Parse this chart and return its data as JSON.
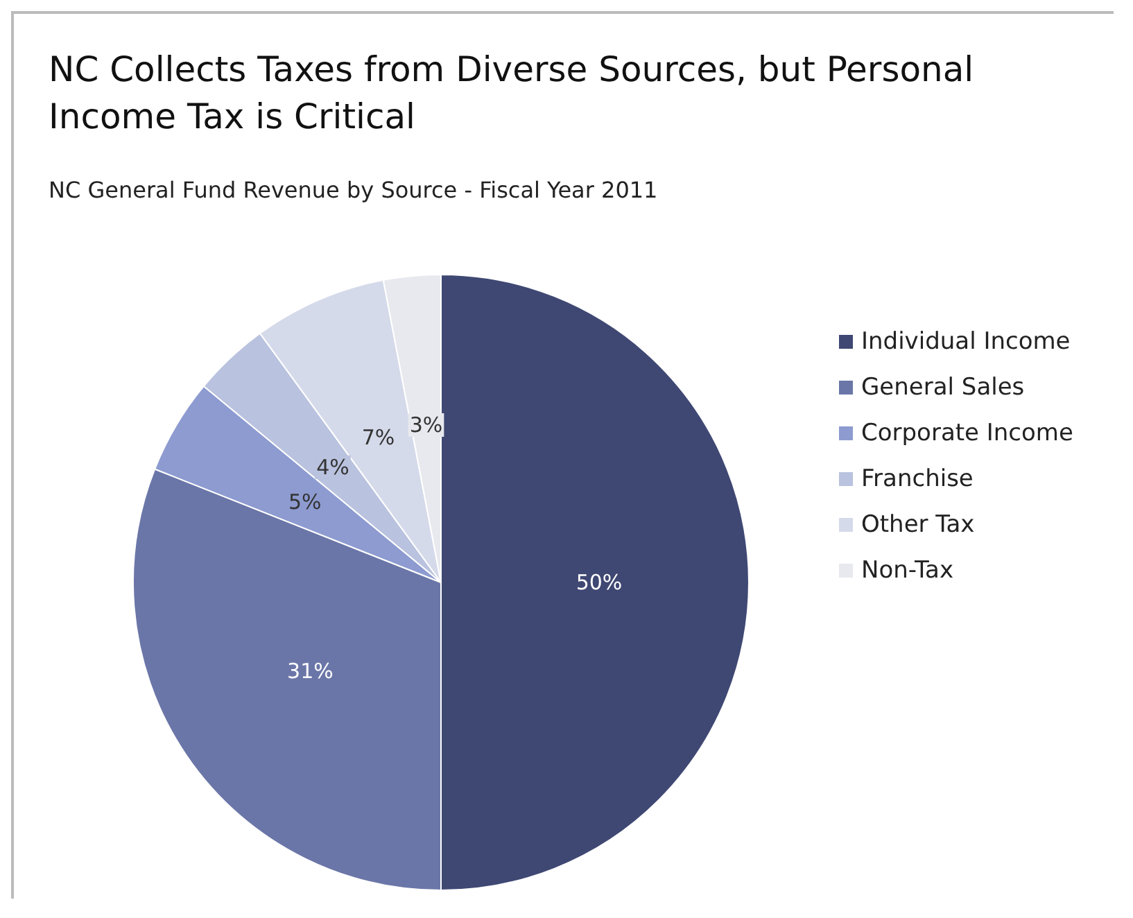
{
  "chart_data": {
    "type": "pie",
    "title": "NC Collects Taxes from Diverse Sources, but Personal\nIncome Tax is Critical",
    "subtitle": "NC General Fund Revenue by Source - Fiscal Year 2011",
    "categories": [
      "Individual Income",
      "General Sales",
      "Corporate Income",
      "Franchise",
      "Other Tax",
      "Non-Tax"
    ],
    "values": [
      50,
      31,
      5,
      4,
      7,
      3
    ],
    "colors": [
      "#3f4873",
      "#6b76a8",
      "#8d9bd0",
      "#b9c2de",
      "#d5daea",
      "#e8e9ee"
    ],
    "value_labels": [
      "50%",
      "31%",
      "5%",
      "4%",
      "7%",
      "3%"
    ],
    "legend": "right"
  }
}
